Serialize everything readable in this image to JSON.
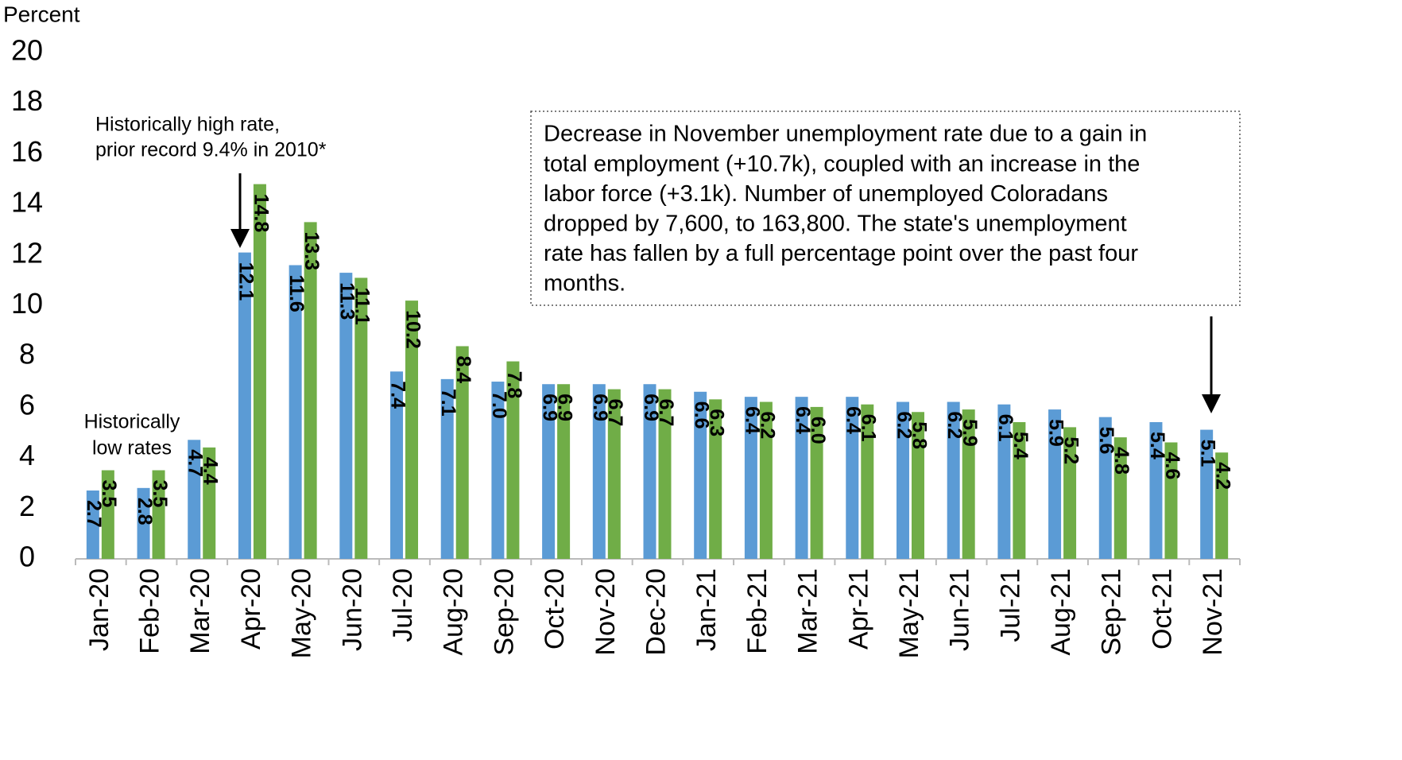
{
  "chart_data": {
    "type": "bar",
    "y_label": "Percent",
    "categories": [
      "Jan-20",
      "Feb-20",
      "Mar-20",
      "Apr-20",
      "May-20",
      "Jun-20",
      "Jul-20",
      "Aug-20",
      "Sep-20",
      "Oct-20",
      "Nov-20",
      "Dec-20",
      "Jan-21",
      "Feb-21",
      "Mar-21",
      "Apr-21",
      "May-21",
      "Jun-21",
      "Jul-21",
      "Aug-21",
      "Sep-21",
      "Oct-21",
      "Nov-21"
    ],
    "series": [
      {
        "color": "#5b9bd5",
        "values": [
          2.7,
          2.8,
          4.7,
          12.1,
          11.6,
          11.3,
          7.4,
          7.1,
          7.0,
          6.9,
          6.9,
          6.9,
          6.6,
          6.4,
          6.4,
          6.4,
          6.2,
          6.2,
          6.1,
          5.9,
          5.6,
          5.4,
          5.1
        ],
        "value_labels": [
          "2.7",
          "2.8",
          "4.7",
          "12.1",
          "11.6",
          "11.3",
          "7.4",
          "7.1",
          "7.0",
          "6.9",
          "6.9",
          "6.9",
          "6.6",
          "6.4",
          "6.4",
          "6.4",
          "6.2",
          "6.2",
          "6.1",
          "5.9",
          "5.6",
          "5.4",
          "5.1"
        ]
      },
      {
        "color": "#70ad47",
        "values": [
          3.5,
          3.5,
          4.4,
          14.8,
          13.3,
          11.1,
          10.2,
          8.4,
          7.8,
          6.9,
          6.7,
          6.7,
          6.3,
          6.2,
          6.0,
          6.1,
          5.8,
          5.9,
          5.4,
          5.2,
          4.8,
          4.6,
          4.2
        ],
        "value_labels": [
          "3.5",
          "3.5",
          "4.4",
          "14.8",
          "13.3",
          "11.1",
          "10.2",
          "8.4",
          "7.8",
          "6.9",
          "6.7",
          "6.7",
          "6.3",
          "6.2",
          "6.0",
          "6.1",
          "5.8",
          "5.9",
          "5.4",
          "5.2",
          "4.8",
          "4.6",
          "4.2"
        ]
      }
    ],
    "ylim": [
      0,
      20
    ],
    "yticks": [
      0,
      2,
      4,
      6,
      8,
      10,
      12,
      14,
      16,
      18,
      20
    ],
    "grid": false,
    "annotations": [
      {
        "lines": [
          "Historically high rate,",
          "prior record 9.4% in 2010*"
        ]
      },
      {
        "lines": [
          "Historically",
          "low rates"
        ]
      },
      {
        "lines": [
          "Decrease in November unemployment rate due to a gain in",
          "total employment (+10.7k), coupled with an increase in the",
          "labor force (+3.1k). Number of unemployed Coloradans",
          "dropped by 7,600, to 163,800. The state's unemployment",
          "rate has fallen by a full percentage point over the past four",
          "months."
        ]
      }
    ]
  }
}
